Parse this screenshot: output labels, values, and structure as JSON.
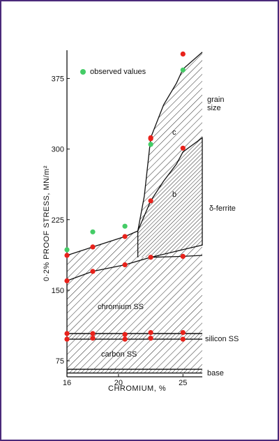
{
  "chart_data": {
    "type": "scatter",
    "xlabel": "CHROMIUM, %",
    "ylabel": "0·2% PROOF STRESS, MN/m²",
    "xlim": [
      16,
      26.5
    ],
    "ylim": [
      58,
      405
    ],
    "x_ticks": [
      16,
      20,
      25
    ],
    "y_ticks": [
      75,
      150,
      225,
      300,
      375
    ],
    "x_tick_labels": [
      "16",
      "20",
      "25"
    ],
    "y_tick_labels": [
      "75",
      "150",
      "225",
      "300",
      "375"
    ],
    "legend": {
      "label": "observed values",
      "color": "#44cc66",
      "placement": "top-left"
    },
    "colors": {
      "green": "#44cc66",
      "red": "#e8221b",
      "ink": "#111111"
    },
    "regions": [
      {
        "name": "base",
        "label": "base",
        "y": [
          62,
          66
        ]
      },
      {
        "name": "carbon",
        "label": "carbon SS",
        "y": [
          66,
          98
        ]
      },
      {
        "name": "silicon",
        "label": "silicon SS",
        "y": [
          98,
          104
        ]
      },
      {
        "name": "chromium",
        "label": "chromium SS"
      },
      {
        "name": "delta-ferrite",
        "label": "δ-ferrite",
        "marker": "b"
      },
      {
        "name": "grain-size",
        "label_lines": [
          "grain",
          "size"
        ],
        "marker": "c"
      }
    ],
    "boundaries": {
      "carbon_top": [
        [
          16,
          98
        ],
        [
          26.5,
          98
        ]
      ],
      "silicon_top": [
        [
          16,
          104
        ],
        [
          26.5,
          104
        ]
      ],
      "chromium_lower": [
        [
          16,
          160
        ],
        [
          18,
          170
        ],
        [
          20.5,
          177
        ],
        [
          22.5,
          185
        ],
        [
          25,
          186
        ],
        [
          26.5,
          187
        ]
      ],
      "chromium_upper": [
        [
          16,
          187
        ],
        [
          18,
          196
        ],
        [
          20.5,
          207
        ],
        [
          21.5,
          213
        ],
        [
          21.5,
          185
        ]
      ],
      "delta_upper": [
        [
          21.5,
          213
        ],
        [
          22.5,
          245
        ],
        [
          23.5,
          266
        ],
        [
          24.5,
          284
        ],
        [
          25,
          297
        ],
        [
          26.2,
          309
        ],
        [
          26.5,
          312
        ],
        [
          26.5,
          198
        ],
        [
          22.5,
          185
        ]
      ],
      "grain_upper": [
        [
          21.5,
          213
        ],
        [
          22,
          250
        ],
        [
          22.5,
          312
        ],
        [
          23.5,
          347
        ],
        [
          24.5,
          370
        ],
        [
          25,
          385
        ],
        [
          26.5,
          403
        ]
      ]
    },
    "series": [
      {
        "name": "observed values",
        "color": "#44cc66",
        "points": [
          [
            16,
            193
          ],
          [
            18,
            212
          ],
          [
            20.5,
            218
          ],
          [
            22.5,
            305
          ],
          [
            25,
            384
          ]
        ]
      },
      {
        "color": "#e8221b",
        "points": [
          [
            16,
            187
          ],
          [
            18,
            196
          ],
          [
            20.5,
            207
          ],
          [
            22.5,
            245
          ],
          [
            22.5,
            312
          ],
          [
            22.5,
            311
          ],
          [
            25,
            301
          ],
          [
            25,
            401
          ],
          [
            16,
            160
          ],
          [
            18,
            170
          ],
          [
            20.5,
            177
          ],
          [
            22.5,
            185
          ],
          [
            25,
            186
          ],
          [
            16,
            104
          ],
          [
            18,
            104
          ],
          [
            20.5,
            103
          ],
          [
            22.5,
            105
          ],
          [
            25,
            105
          ],
          [
            16,
            98
          ],
          [
            18,
            99
          ],
          [
            20.5,
            98
          ],
          [
            22.5,
            99
          ],
          [
            25,
            98
          ]
        ]
      }
    ]
  }
}
